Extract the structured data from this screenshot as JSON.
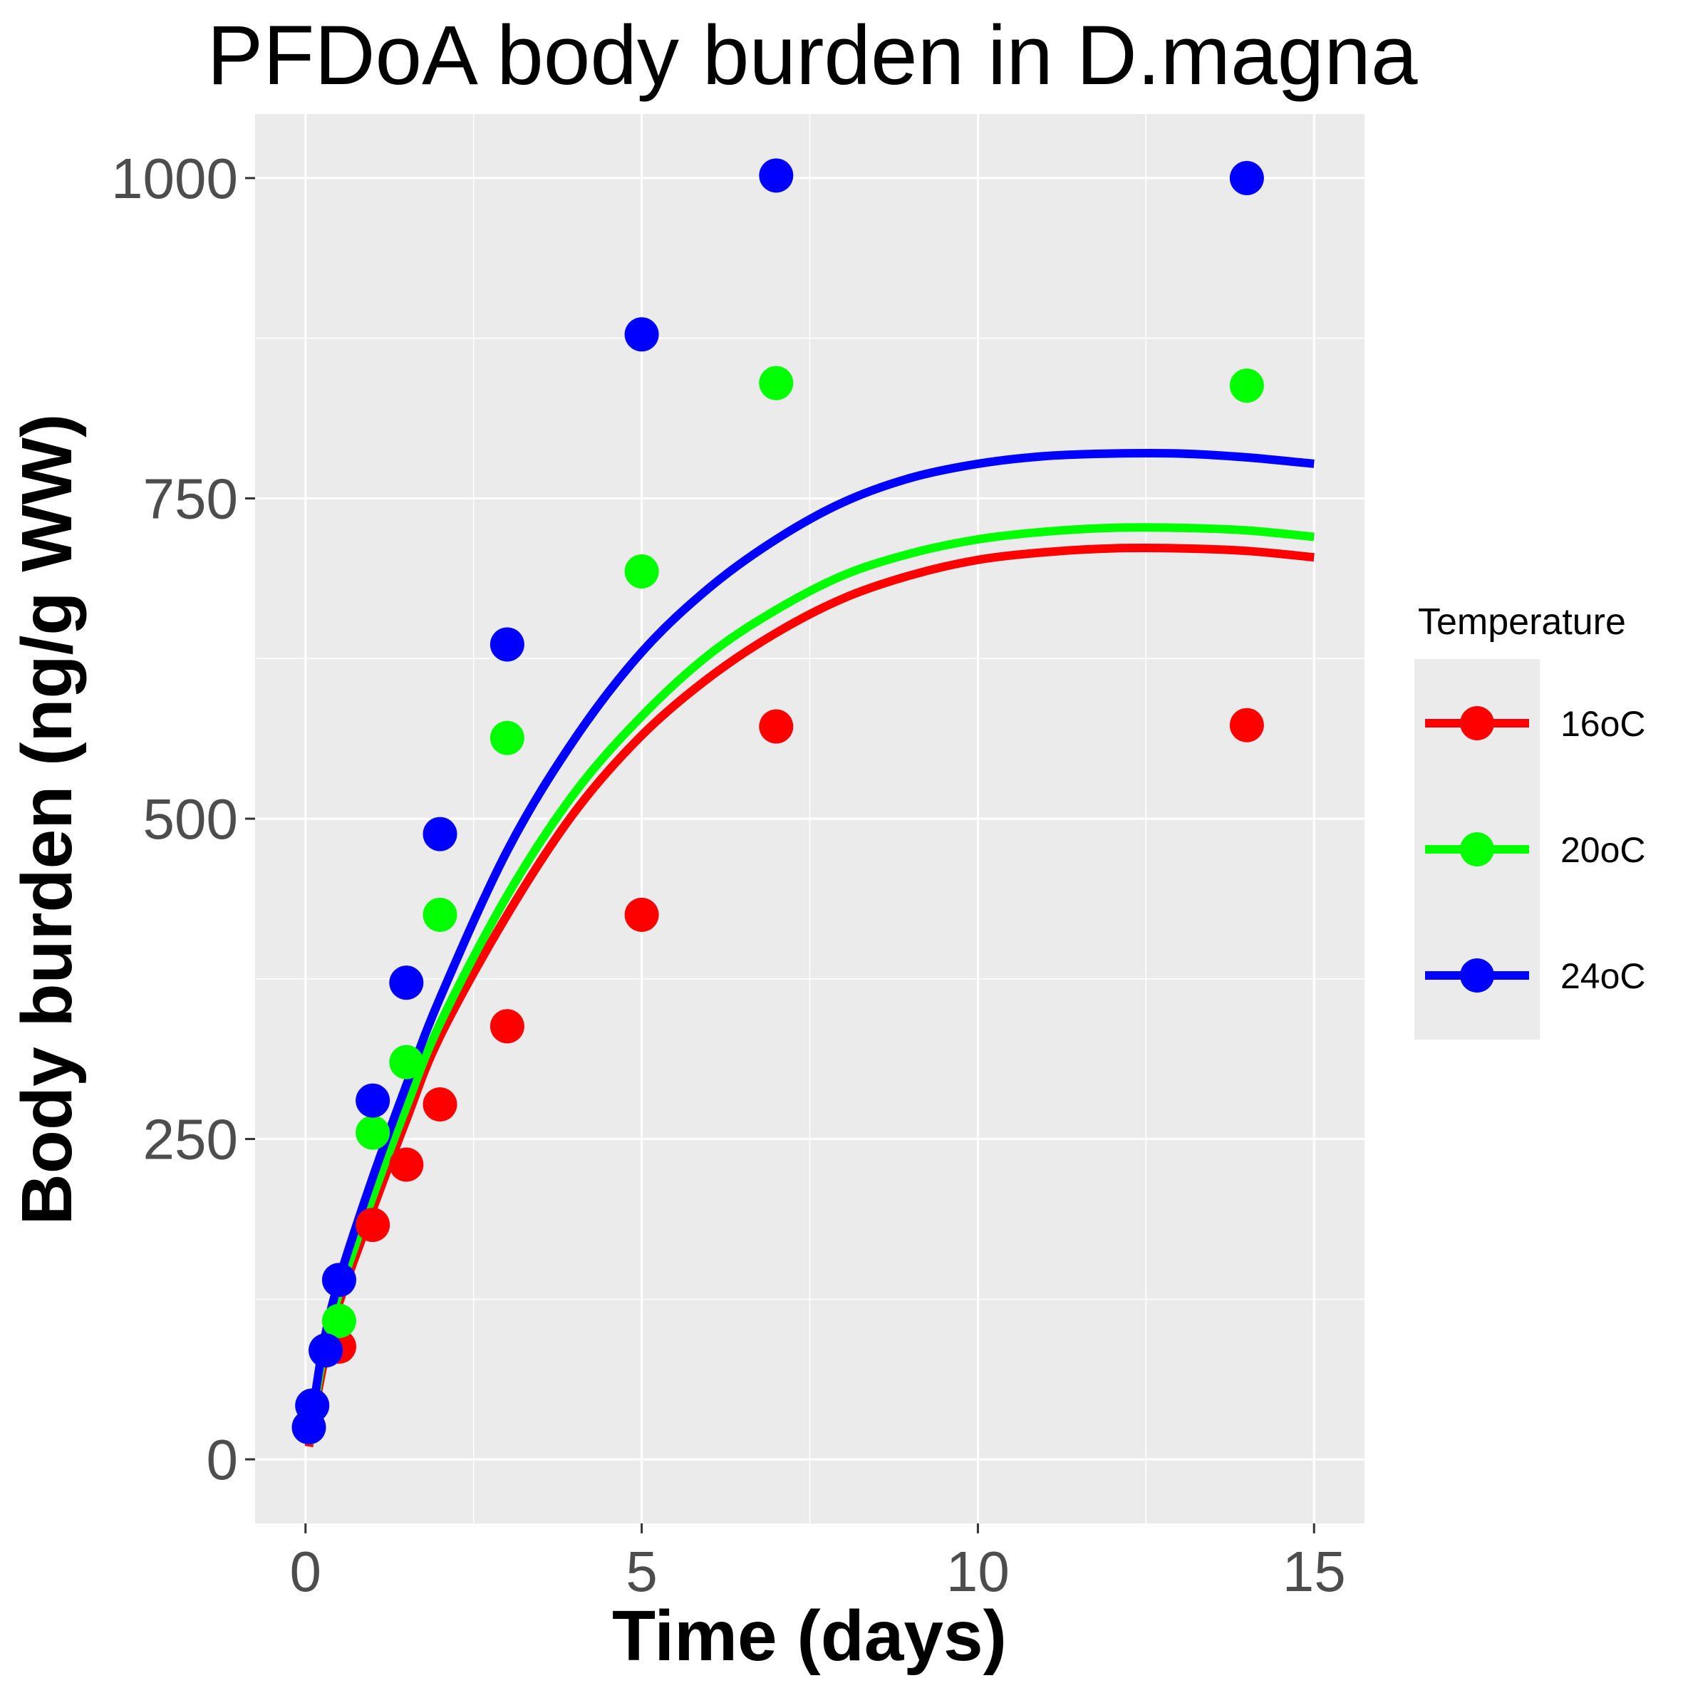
{
  "chart_data": {
    "type": "scatter",
    "title": "PFDoA body burden in D.magna",
    "xlabel": "Time (days)",
    "ylabel": "Body burden (ng/g WW)",
    "xlim": [
      -0.75,
      15.75
    ],
    "ylim": [
      -50,
      1050
    ],
    "x_ticks": [
      0,
      5,
      10,
      15
    ],
    "y_ticks": [
      0,
      250,
      500,
      750,
      1000
    ],
    "x_tick_labels": [
      "0",
      "5",
      "10",
      "15"
    ],
    "y_tick_labels": [
      "0",
      "250",
      "500",
      "750",
      "1000"
    ],
    "grid": true,
    "legend": {
      "title": "Temperature",
      "position": "right"
    },
    "series": [
      {
        "name": "16oC",
        "color": "#ff0000",
        "points": [
          [
            0.5,
            88
          ],
          [
            1,
            183
          ],
          [
            1.5,
            230
          ],
          [
            2,
            277
          ],
          [
            3,
            338
          ],
          [
            5,
            425
          ],
          [
            7,
            572
          ],
          [
            14,
            573
          ]
        ],
        "fit": [
          [
            0.05,
            10
          ],
          [
            0.25,
            70
          ],
          [
            0.5,
            122
          ],
          [
            1,
            195
          ],
          [
            1.5,
            265
          ],
          [
            2,
            330
          ],
          [
            3,
            425
          ],
          [
            4,
            505
          ],
          [
            5,
            565
          ],
          [
            6,
            610
          ],
          [
            7,
            645
          ],
          [
            8,
            672
          ],
          [
            9,
            690
          ],
          [
            10,
            702
          ],
          [
            11,
            708
          ],
          [
            12,
            711
          ],
          [
            13,
            711
          ],
          [
            14,
            709
          ],
          [
            15,
            704
          ]
        ]
      },
      {
        "name": "20oC",
        "color": "#00ff00",
        "points": [
          [
            0.5,
            108
          ],
          [
            1,
            255
          ],
          [
            1.5,
            310
          ],
          [
            2,
            425
          ],
          [
            3,
            563
          ],
          [
            5,
            693
          ],
          [
            7,
            840
          ],
          [
            14,
            838
          ]
        ],
        "fit": [
          [
            0.05,
            12
          ],
          [
            0.25,
            78
          ],
          [
            0.5,
            130
          ],
          [
            1,
            205
          ],
          [
            1.5,
            275
          ],
          [
            2,
            340
          ],
          [
            3,
            440
          ],
          [
            4,
            520
          ],
          [
            5,
            580
          ],
          [
            6,
            628
          ],
          [
            7,
            663
          ],
          [
            8,
            690
          ],
          [
            9,
            707
          ],
          [
            10,
            718
          ],
          [
            11,
            724
          ],
          [
            12,
            727
          ],
          [
            13,
            727
          ],
          [
            14,
            725
          ],
          [
            15,
            720
          ]
        ]
      },
      {
        "name": "24oC",
        "color": "#0000ff",
        "points": [
          [
            0.05,
            25
          ],
          [
            0.1,
            42
          ],
          [
            0.3,
            85
          ],
          [
            0.5,
            140
          ],
          [
            1,
            280
          ],
          [
            1.5,
            372
          ],
          [
            2,
            488
          ],
          [
            3,
            636
          ],
          [
            5,
            878
          ],
          [
            7,
            1002
          ],
          [
            14,
            1000
          ]
        ],
        "fit": [
          [
            0.05,
            15
          ],
          [
            0.25,
            85
          ],
          [
            0.5,
            140
          ],
          [
            1,
            220
          ],
          [
            1.5,
            292
          ],
          [
            2,
            360
          ],
          [
            3,
            475
          ],
          [
            4,
            562
          ],
          [
            5,
            630
          ],
          [
            6,
            680
          ],
          [
            7,
            718
          ],
          [
            8,
            747
          ],
          [
            9,
            766
          ],
          [
            10,
            777
          ],
          [
            11,
            783
          ],
          [
            12,
            785
          ],
          [
            13,
            785
          ],
          [
            14,
            782
          ],
          [
            15,
            777
          ]
        ]
      }
    ]
  }
}
